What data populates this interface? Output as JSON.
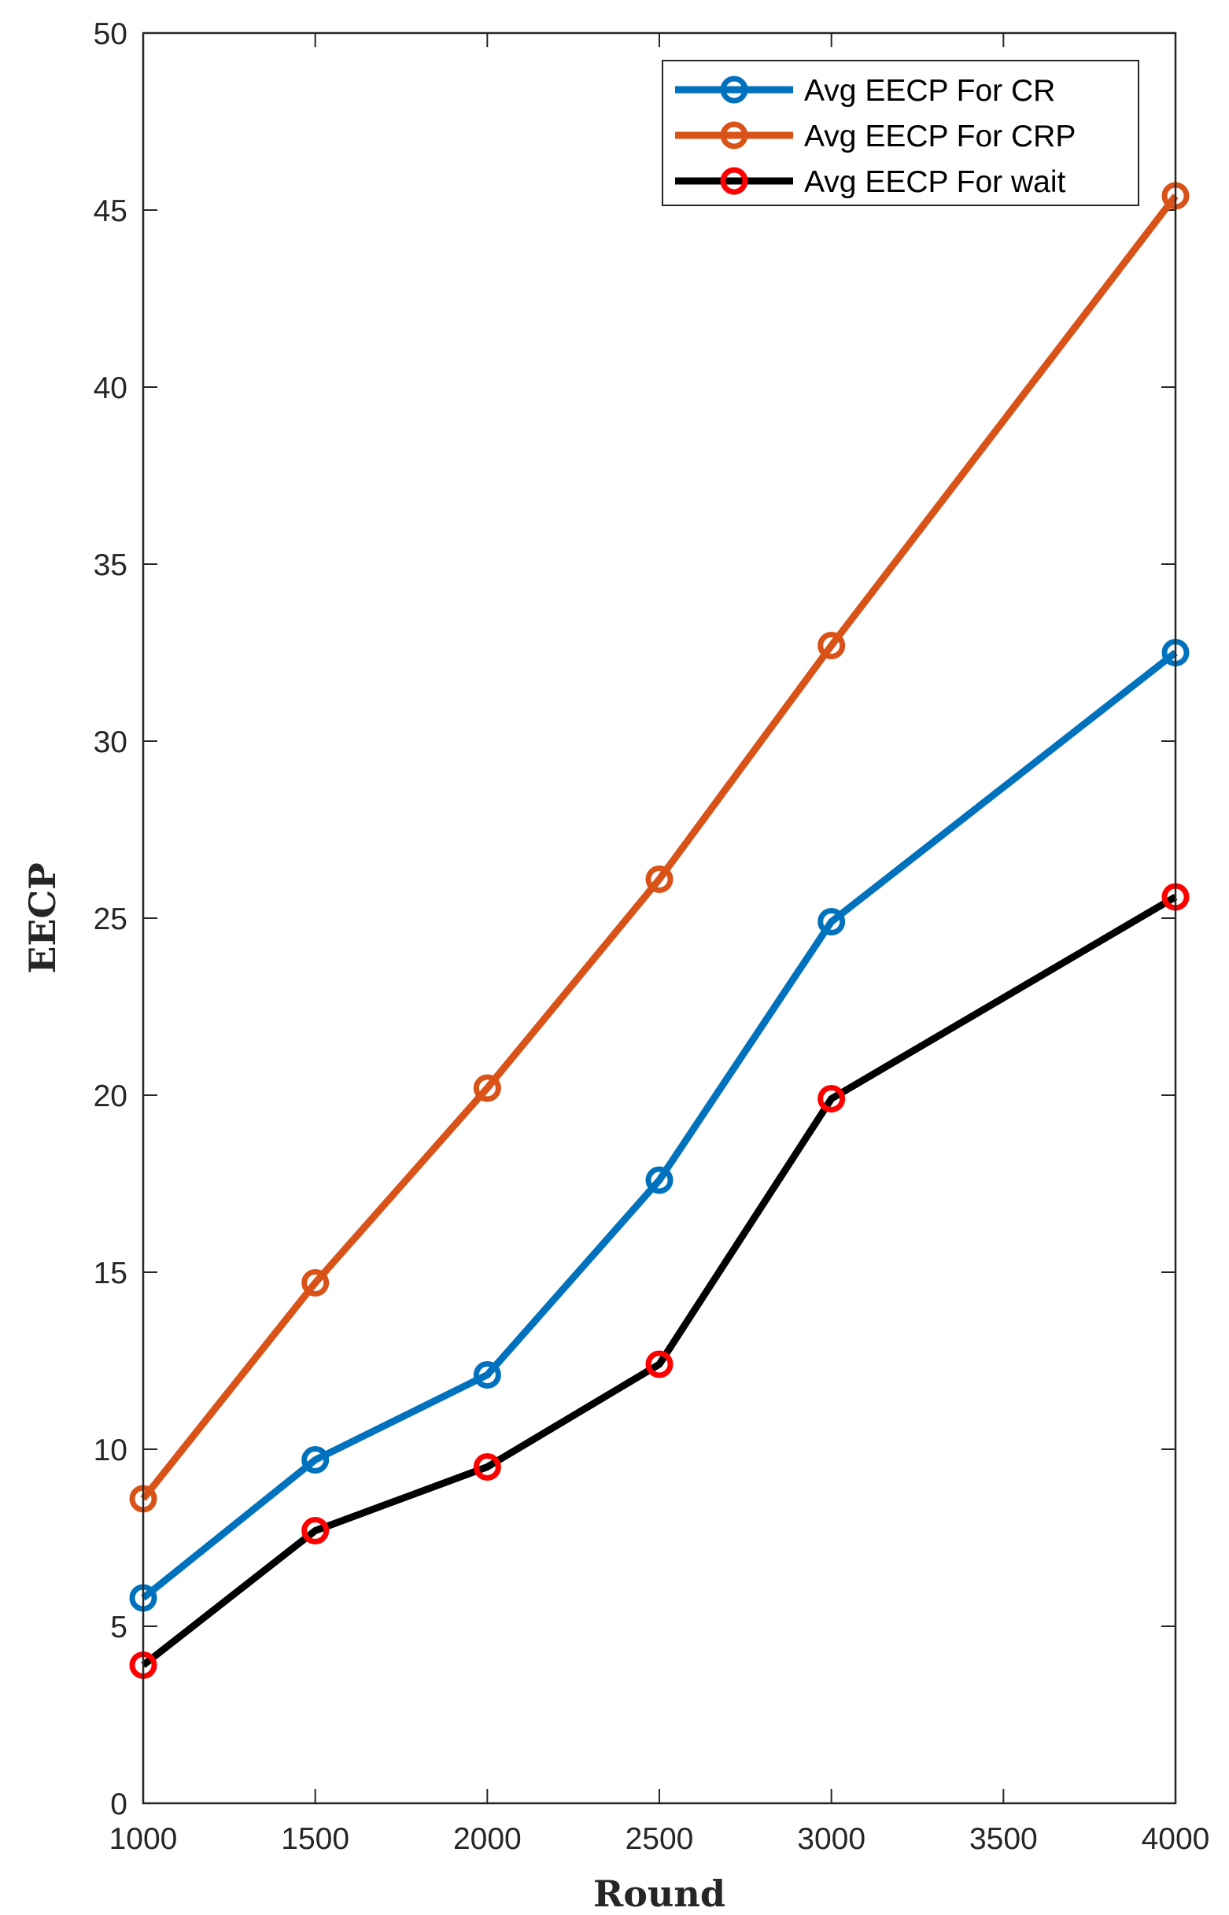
{
  "chart_data": {
    "type": "line",
    "xlabel": "Round",
    "ylabel": "EECP",
    "xlim": [
      1000,
      4000
    ],
    "ylim": [
      0,
      50
    ],
    "xticks": [
      1000,
      1500,
      2000,
      2500,
      3000,
      3500,
      4000
    ],
    "yticks": [
      0,
      5,
      10,
      15,
      20,
      25,
      30,
      35,
      40,
      45,
      50
    ],
    "grid": false,
    "legend_position": "top-right",
    "series": [
      {
        "name": "Avg EECP For CR",
        "color": "#0072BD",
        "marker_color": "#0072BD",
        "x": [
          1000,
          1500,
          2000,
          2500,
          3000,
          4000
        ],
        "values": [
          5.8,
          9.7,
          12.1,
          17.6,
          24.9,
          32.5
        ]
      },
      {
        "name": "Avg EECP For CRP",
        "color": "#D95319",
        "marker_color": "#D95319",
        "x": [
          1000,
          1500,
          2000,
          2500,
          3000,
          4000
        ],
        "values": [
          8.6,
          14.7,
          20.2,
          26.1,
          32.7,
          45.4
        ]
      },
      {
        "name": "Avg EECP For wait",
        "color": "#000000",
        "marker_color": "#FF0000",
        "x": [
          1000,
          1500,
          2000,
          2500,
          3000,
          4000
        ],
        "values": [
          3.9,
          7.7,
          9.5,
          12.4,
          19.9,
          25.6
        ]
      }
    ]
  }
}
